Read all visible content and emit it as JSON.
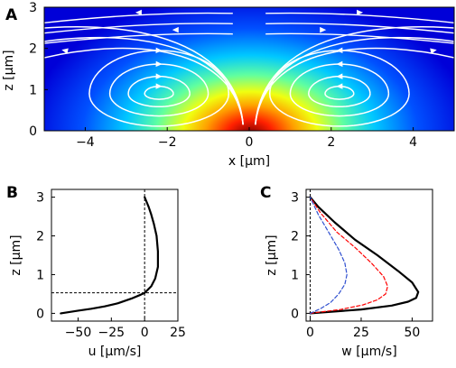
{
  "chart_data": [
    {
      "panel": "A",
      "type": "heatmap",
      "title": "",
      "xlabel": "x [μm]",
      "ylabel": "z [μm]",
      "xlim": [
        -5,
        5
      ],
      "ylim": [
        0,
        3
      ],
      "xticks": [
        -4,
        -2,
        0,
        2,
        4
      ],
      "yticks": [
        0,
        1,
        2,
        3
      ],
      "hotspot": {
        "x": 0,
        "z": 0
      },
      "vortex_centers": [
        {
          "x": -2.2,
          "z": 0.9
        },
        {
          "x": 2.2,
          "z": 0.9
        }
      ],
      "colormap": [
        "#00008f",
        "#0000ff",
        "#00ffff",
        "#ffff00",
        "#ff0000",
        "#800000"
      ],
      "streamline_color": "#ffffff"
    },
    {
      "panel": "B",
      "type": "line",
      "title": "",
      "xlabel": "u [μm/s]",
      "ylabel": "z [μm]",
      "xlim": [
        -70,
        25
      ],
      "ylim": [
        -0.2,
        3.2
      ],
      "xticks": [
        -50,
        -25,
        0,
        25
      ],
      "yticks": [
        0,
        1,
        2,
        3
      ],
      "reference_lines": {
        "x": 0,
        "z": 0.53
      },
      "series": [
        {
          "color": "#000000",
          "x": [
            -63,
            -50,
            -40,
            -30,
            -20,
            -10,
            -3,
            0,
            5,
            8,
            10,
            10,
            9,
            7,
            5,
            3,
            1,
            0
          ],
          "y": [
            0.0,
            0.07,
            0.12,
            0.18,
            0.26,
            0.38,
            0.48,
            0.53,
            0.7,
            0.9,
            1.2,
            1.6,
            2.0,
            2.3,
            2.55,
            2.75,
            2.92,
            3.0
          ]
        }
      ]
    },
    {
      "panel": "C",
      "type": "line",
      "title": "",
      "xlabel": "w [μm/s]",
      "ylabel": "z [μm]",
      "xlim": [
        -2,
        60
      ],
      "ylim": [
        -0.2,
        3.2
      ],
      "xticks": [
        0,
        25,
        50
      ],
      "yticks": [
        0,
        1,
        2,
        3
      ],
      "reference_lines": {
        "x": 0
      },
      "series": [
        {
          "color": "#000000",
          "x": [
            0,
            25,
            40,
            48,
            52,
            53,
            50,
            43,
            33,
            22,
            12,
            4,
            0
          ],
          "y": [
            0.0,
            0.1,
            0.2,
            0.3,
            0.4,
            0.55,
            0.8,
            1.1,
            1.5,
            1.9,
            2.35,
            2.75,
            3.0
          ]
        },
        {
          "color": "#ff0000",
          "x": [
            0,
            15,
            26,
            33,
            37,
            38,
            36,
            30,
            22,
            13,
            5,
            0
          ],
          "y": [
            0.0,
            0.1,
            0.22,
            0.35,
            0.5,
            0.7,
            0.95,
            1.3,
            1.7,
            2.1,
            2.6,
            3.0
          ]
        },
        {
          "color": "#3050d0",
          "x": [
            0,
            5,
            10,
            14,
            17,
            18,
            17,
            14,
            9,
            4,
            0
          ],
          "y": [
            0.0,
            0.12,
            0.28,
            0.5,
            0.75,
            1.0,
            1.3,
            1.65,
            2.1,
            2.55,
            3.0
          ]
        }
      ]
    }
  ],
  "panels": [
    "A",
    "B",
    "C"
  ]
}
